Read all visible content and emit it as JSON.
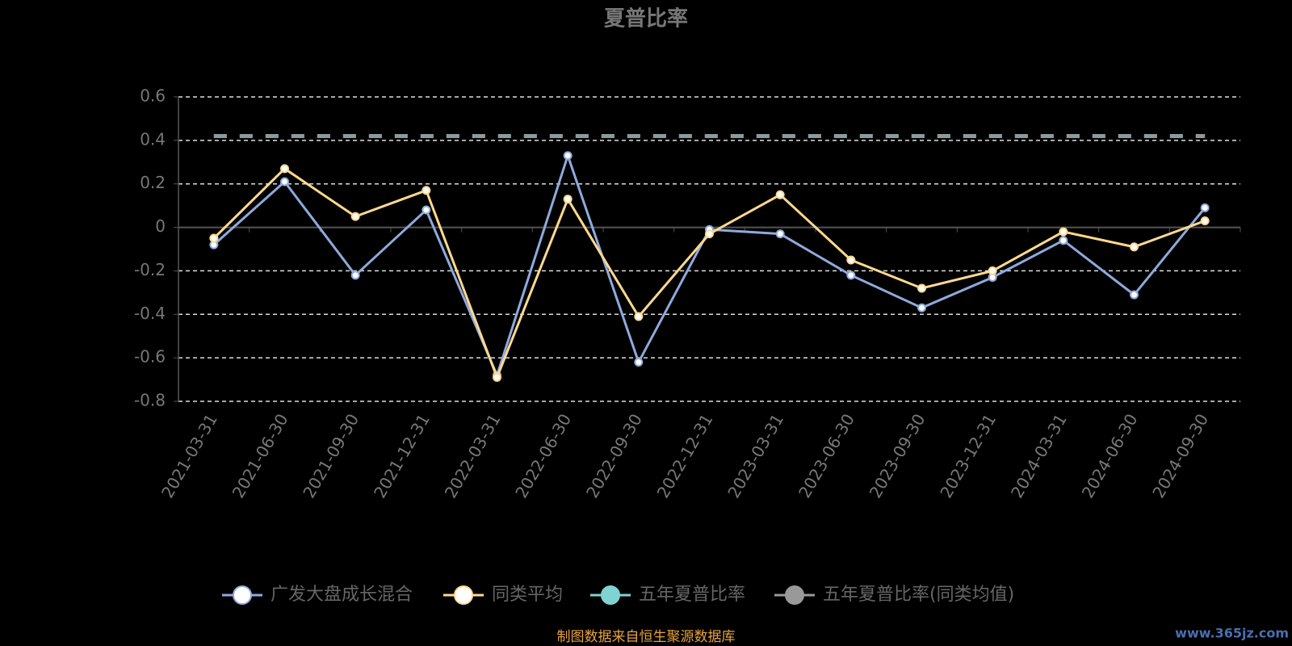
{
  "chart_data": {
    "type": "line",
    "title": "夏普比率",
    "categories": [
      "2021-03-31",
      "2021-06-30",
      "2021-09-30",
      "2021-12-31",
      "2022-03-31",
      "2022-06-30",
      "2022-09-30",
      "2022-12-31",
      "2023-03-31",
      "2023-06-30",
      "2023-09-30",
      "2023-12-31",
      "2024-03-31",
      "2024-06-30",
      "2024-09-30"
    ],
    "series": [
      {
        "name": "广发大盘成长混合",
        "color": "#8eaadc",
        "values": [
          -0.08,
          0.21,
          -0.22,
          0.08,
          -0.68,
          0.33,
          -0.62,
          -0.01,
          -0.03,
          -0.22,
          -0.37,
          -0.23,
          -0.06,
          -0.31,
          0.09
        ]
      },
      {
        "name": "同类平均",
        "color": "#ffd98e",
        "values": [
          -0.05,
          0.27,
          0.05,
          0.17,
          -0.69,
          0.13,
          -0.41,
          -0.03,
          0.15,
          -0.15,
          -0.28,
          -0.2,
          -0.02,
          -0.09,
          0.03
        ]
      },
      {
        "name": "五年夏普比率",
        "color": "#7fd3d3",
        "dashed": true,
        "values": [
          0.42,
          0.42,
          0.42,
          0.42,
          0.42,
          0.42,
          0.42,
          0.42,
          0.42,
          0.42,
          0.42,
          0.42,
          0.42,
          0.42,
          0.42
        ]
      },
      {
        "name": "五年夏普比率(同类均值)",
        "color": "#999999",
        "dashed": true,
        "values": [
          0.42,
          0.42,
          0.42,
          0.42,
          0.42,
          0.42,
          0.42,
          0.42,
          0.42,
          0.42,
          0.42,
          0.42,
          0.42,
          0.42,
          0.42
        ]
      }
    ],
    "ylim": [
      -0.8,
      0.6
    ],
    "yticks": [
      -0.8,
      -0.6,
      -0.4,
      -0.2,
      0,
      0.2,
      0.4,
      0.6
    ],
    "grid": true,
    "source": "制图数据来自恒生聚源数据库",
    "watermark": "www.365jz.com"
  }
}
